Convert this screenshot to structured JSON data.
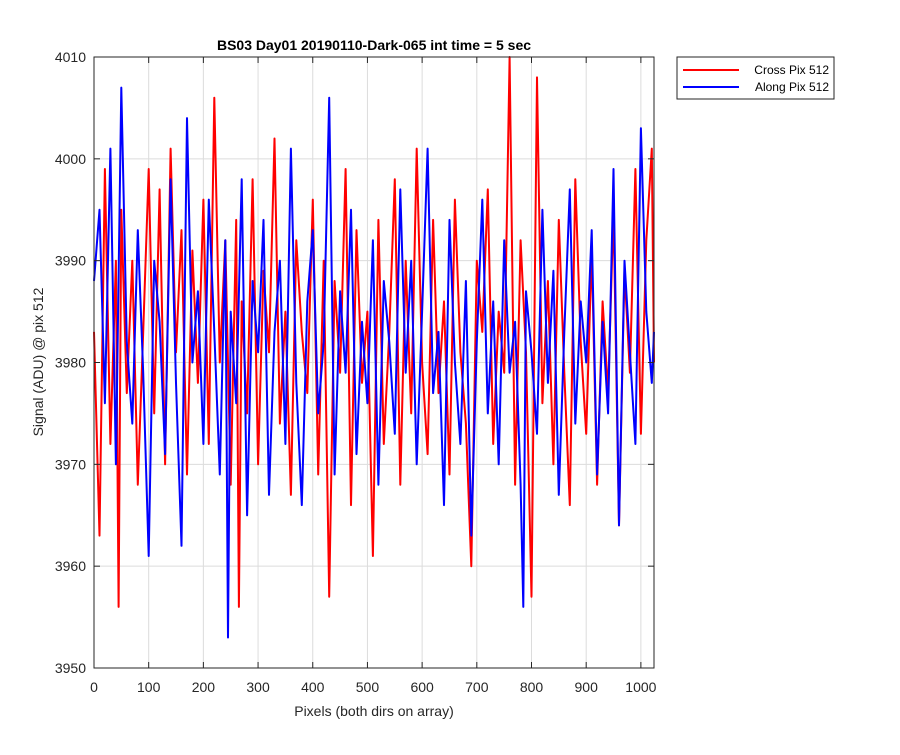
{
  "chart_data": {
    "type": "line",
    "title": "BS03 Day01 20190110-Dark-065 int time = 5 sec",
    "xlabel": "Pixels (both dirs on array)",
    "ylabel": "Signal (ADU) @ pix 512",
    "xlim": [
      0,
      1024
    ],
    "ylim": [
      3950,
      4010
    ],
    "grid": true,
    "legend_position": "outside-top-right",
    "xticks": [
      0,
      100,
      200,
      300,
      400,
      500,
      600,
      700,
      800,
      900,
      1000
    ],
    "yticks": [
      3950,
      3960,
      3970,
      3980,
      3990,
      4000,
      4010
    ],
    "series": [
      {
        "name": "Cross Pix 512",
        "color": "#ff0000",
        "x": [
          0,
          10,
          20,
          30,
          40,
          45,
          50,
          60,
          70,
          80,
          90,
          100,
          110,
          120,
          130,
          140,
          150,
          160,
          170,
          180,
          190,
          200,
          210,
          220,
          230,
          240,
          250,
          260,
          265,
          270,
          280,
          290,
          300,
          310,
          320,
          330,
          340,
          350,
          360,
          370,
          380,
          390,
          400,
          410,
          420,
          430,
          440,
          450,
          460,
          470,
          480,
          490,
          500,
          510,
          520,
          530,
          540,
          550,
          560,
          570,
          580,
          590,
          600,
          610,
          620,
          630,
          640,
          650,
          660,
          670,
          680,
          690,
          700,
          710,
          720,
          730,
          740,
          750,
          760,
          770,
          780,
          790,
          800,
          810,
          820,
          830,
          840,
          850,
          860,
          870,
          880,
          890,
          900,
          910,
          920,
          930,
          940,
          950,
          960,
          970,
          980,
          990,
          1000,
          1010,
          1020,
          1024
        ],
        "values": [
          3983,
          3963,
          3999,
          3972,
          3990,
          3956,
          3995,
          3977,
          3990,
          3968,
          3983,
          3999,
          3975,
          3997,
          3970,
          4001,
          3981,
          3993,
          3969,
          3991,
          3978,
          3996,
          3972,
          4006,
          3980,
          3992,
          3968,
          3994,
          3956,
          3986,
          3975,
          3998,
          3970,
          3989,
          3981,
          4002,
          3974,
          3985,
          3967,
          3992,
          3983,
          3977,
          3996,
          3969,
          3990,
          3957,
          3988,
          3979,
          3999,
          3966,
          3993,
          3978,
          3985,
          3961,
          3994,
          3972,
          3983,
          3998,
          3968,
          3990,
          3975,
          4001,
          3980,
          3971,
          3994,
          3977,
          3986,
          3969,
          3996,
          3981,
          3974,
          3960,
          3990,
          3983,
          3997,
          3972,
          3985,
          3979,
          4010,
          3968,
          3992,
          3981,
          3957,
          4008,
          3976,
          3988,
          3970,
          3994,
          3979,
          3966,
          3998,
          3982,
          3973,
          3991,
          3968,
          3986,
          3977,
          3995,
          3964,
          3989,
          3979,
          3999,
          3973,
          3992,
          4001,
          3980
        ]
      },
      {
        "name": "Along Pix 512",
        "color": "#0000ff",
        "x": [
          0,
          10,
          20,
          30,
          40,
          50,
          60,
          70,
          80,
          90,
          100,
          110,
          120,
          130,
          140,
          150,
          160,
          170,
          180,
          190,
          200,
          210,
          220,
          230,
          240,
          245,
          250,
          260,
          270,
          280,
          290,
          300,
          310,
          320,
          330,
          340,
          350,
          360,
          370,
          380,
          390,
          400,
          410,
          420,
          430,
          440,
          450,
          460,
          470,
          480,
          490,
          500,
          510,
          520,
          530,
          540,
          550,
          560,
          570,
          580,
          590,
          600,
          610,
          620,
          630,
          640,
          650,
          660,
          670,
          680,
          690,
          700,
          710,
          720,
          730,
          740,
          750,
          760,
          770,
          780,
          785,
          790,
          800,
          810,
          820,
          830,
          840,
          850,
          860,
          870,
          880,
          890,
          900,
          910,
          920,
          930,
          940,
          950,
          960,
          970,
          980,
          990,
          1000,
          1010,
          1020,
          1024
        ],
        "values": [
          3988,
          3995,
          3976,
          4001,
          3970,
          4007,
          3982,
          3974,
          3993,
          3979,
          3961,
          3990,
          3984,
          3971,
          3998,
          3978,
          3962,
          4004,
          3980,
          3987,
          3972,
          3996,
          3983,
          3969,
          3992,
          3953,
          3985,
          3976,
          3998,
          3965,
          3988,
          3981,
          3994,
          3967,
          3983,
          3990,
          3972,
          4001,
          3978,
          3966,
          3986,
          3993,
          3975,
          3982,
          4006,
          3969,
          3987,
          3979,
          3995,
          3971,
          3984,
          3976,
          3992,
          3968,
          3988,
          3982,
          3973,
          3997,
          3979,
          3990,
          3970,
          3985,
          4001,
          3977,
          3983,
          3966,
          3994,
          3980,
          3972,
          3988,
          3963,
          3982,
          3996,
          3975,
          3986,
          3970,
          3992,
          3979,
          3984,
          3968,
          3956,
          3987,
          3981,
          3973,
          3995,
          3978,
          3989,
          3967,
          3983,
          3997,
          3974,
          3986,
          3980,
          3993,
          3969,
          3984,
          3975,
          3999,
          3964,
          3990,
          3981,
          3972,
          4003,
          3985,
          3978,
          3983
        ]
      }
    ]
  }
}
